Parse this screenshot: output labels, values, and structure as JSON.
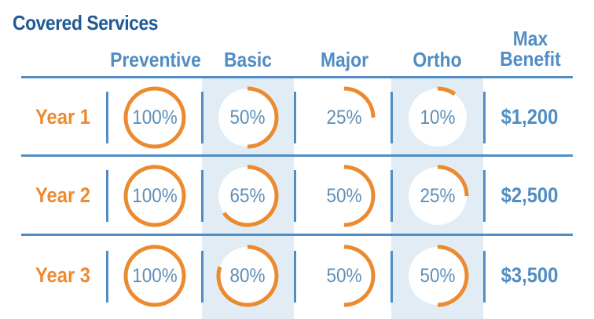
{
  "title": "Covered Services",
  "columns": {
    "preventive": "Preventive",
    "basic": "Basic",
    "major": "Major",
    "ortho": "Ortho",
    "max_benefit_line1": "Max",
    "max_benefit_line2": "Benefit"
  },
  "rows": [
    {
      "label": "Year 1",
      "preventive": {
        "value": 100,
        "label": "100%"
      },
      "basic": {
        "value": 50,
        "label": "50%"
      },
      "major": {
        "value": 25,
        "label": "25%"
      },
      "ortho": {
        "value": 10,
        "label": "10%"
      },
      "max_benefit": "$1,200"
    },
    {
      "label": "Year 2",
      "preventive": {
        "value": 100,
        "label": "100%"
      },
      "basic": {
        "value": 65,
        "label": "65%"
      },
      "major": {
        "value": 50,
        "label": "50%"
      },
      "ortho": {
        "value": 25,
        "label": "25%"
      },
      "max_benefit": "$2,500"
    },
    {
      "label": "Year 3",
      "preventive": {
        "value": 100,
        "label": "100%"
      },
      "basic": {
        "value": 80,
        "label": "80%"
      },
      "major": {
        "value": 50,
        "label": "50%"
      },
      "ortho": {
        "value": 50,
        "label": "50%"
      },
      "max_benefit": "$3,500"
    }
  ],
  "colors": {
    "title": "#1f5a96",
    "header": "#4f8dc4",
    "accent": "#ec8a2f",
    "band": "#e1ecf4",
    "percent_text": "#5f8fb6"
  }
}
